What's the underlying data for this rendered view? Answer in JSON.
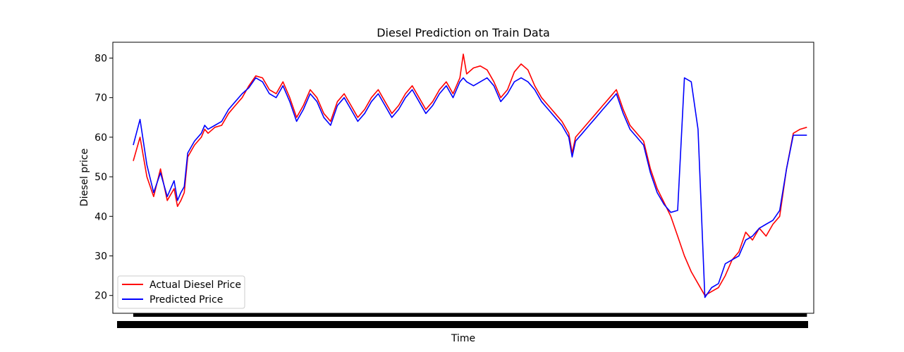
{
  "chart_data": {
    "type": "line",
    "title": "Diesel  Prediction on Train Data",
    "xlabel": "Time",
    "ylabel": "Diesel price",
    "ylim": [
      15.5,
      84
    ],
    "yticks": [
      20,
      30,
      40,
      50,
      60,
      70,
      80
    ],
    "xlim": [
      -3,
      100
    ],
    "grid": false,
    "legend_position": "lower-left",
    "series": [
      {
        "name": "Actual Diesel Price",
        "color": "#ff0000",
        "x": [
          0,
          1,
          2,
          3,
          4,
          5,
          6,
          6.5,
          7,
          7.5,
          8,
          9,
          10,
          10.5,
          11,
          12,
          13,
          14,
          15,
          16,
          17,
          18,
          19,
          20,
          21,
          22,
          23,
          24,
          25,
          26,
          27,
          28,
          29,
          30,
          31,
          32,
          33,
          34,
          35,
          36,
          37,
          38,
          39,
          40,
          41,
          42,
          43,
          44,
          45,
          46,
          47,
          48,
          48.5,
          49,
          50,
          51,
          52,
          53,
          54,
          55,
          56,
          57,
          58,
          59,
          60,
          61,
          62,
          63,
          64,
          64.5,
          65,
          66,
          67,
          68,
          69,
          70,
          71,
          72,
          73,
          74,
          75,
          76,
          77,
          78,
          79,
          80,
          81,
          82,
          83,
          84,
          85,
          86,
          87,
          88,
          89,
          90,
          91,
          92,
          93,
          94,
          95,
          96,
          97,
          98,
          99
        ],
        "values": [
          54,
          60,
          50,
          45,
          52,
          44,
          47,
          42.5,
          44,
          46,
          55,
          58,
          60,
          62,
          61,
          62.5,
          63,
          66,
          68,
          70,
          73,
          75.5,
          75,
          72,
          71,
          74,
          70,
          65,
          68,
          72,
          70,
          66,
          64,
          69,
          71,
          68,
          65,
          67,
          70,
          72,
          69,
          66,
          68,
          71,
          73,
          70,
          67,
          69,
          72,
          74,
          71,
          75,
          81,
          76,
          77.5,
          78,
          77,
          74,
          70,
          72,
          76.5,
          78.5,
          77,
          73,
          70,
          68,
          66,
          64,
          61,
          56,
          60,
          62,
          64,
          66,
          68,
          70,
          72,
          67,
          63,
          61,
          59,
          52,
          47,
          43.5,
          40,
          35,
          30,
          26,
          23,
          20,
          21,
          22,
          25,
          29,
          31,
          36,
          34,
          37,
          35,
          38,
          40,
          52,
          61,
          62,
          62.5
        ]
      },
      {
        "name": "Predicted Price",
        "color": "#0000ff",
        "x": [
          0,
          1,
          2,
          3,
          4,
          5,
          6,
          6.5,
          7,
          7.5,
          8,
          9,
          10,
          10.5,
          11,
          12,
          13,
          14,
          15,
          16,
          17,
          18,
          19,
          20,
          21,
          22,
          23,
          24,
          25,
          26,
          27,
          28,
          29,
          30,
          31,
          32,
          33,
          34,
          35,
          36,
          37,
          38,
          39,
          40,
          41,
          42,
          43,
          44,
          45,
          46,
          47,
          48,
          48.5,
          49,
          50,
          51,
          52,
          53,
          54,
          55,
          56,
          57,
          58,
          59,
          60,
          61,
          62,
          63,
          64,
          64.5,
          65,
          66,
          67,
          68,
          69,
          70,
          71,
          72,
          73,
          74,
          75,
          76,
          77,
          78,
          79,
          80,
          81,
          82,
          83,
          84,
          85,
          86,
          87,
          88,
          89,
          90,
          91,
          92,
          93,
          94,
          95,
          96,
          97,
          98,
          99
        ],
        "values": [
          58,
          64.5,
          53,
          46,
          51,
          45,
          49,
          44,
          46,
          47.5,
          56,
          59,
          61,
          63,
          62,
          63,
          64,
          67,
          69,
          71,
          72.5,
          75,
          74,
          71,
          70,
          73,
          69,
          64,
          67,
          71,
          69,
          65,
          63,
          68,
          70,
          67,
          64,
          66,
          69,
          71,
          68,
          65,
          67,
          70,
          72,
          69,
          66,
          68,
          71,
          73,
          70,
          74,
          75,
          74,
          73,
          74,
          75,
          73,
          69,
          71,
          74,
          75,
          74,
          72,
          69,
          67,
          65,
          63,
          60,
          55,
          59,
          61,
          63,
          65,
          67,
          69,
          71,
          66,
          62,
          60,
          58,
          51,
          46,
          43,
          41,
          41.5,
          75,
          74,
          62,
          19.5,
          22,
          23,
          28,
          29,
          30,
          34,
          35,
          37,
          38,
          39,
          41.5,
          52,
          60.5,
          60.5,
          60.5
        ]
      }
    ]
  }
}
